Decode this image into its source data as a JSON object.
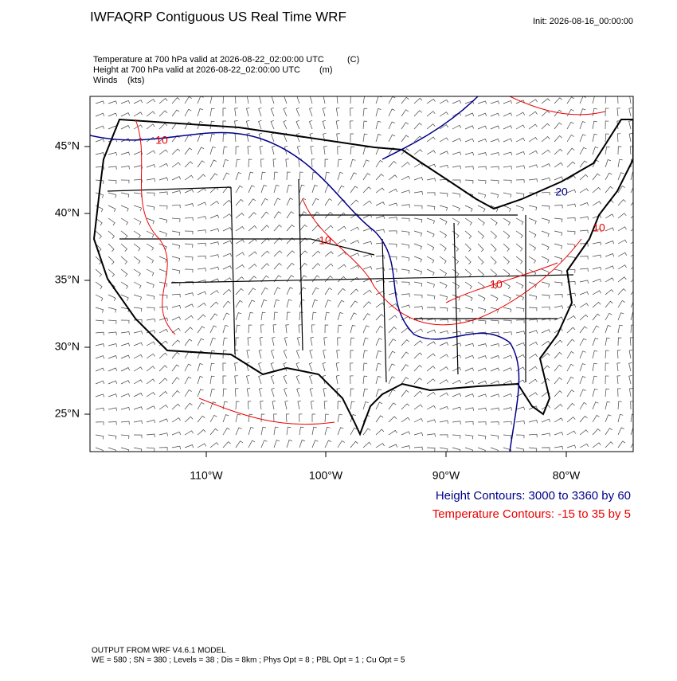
{
  "header": {
    "title": "IWFAQRP Contiguous US Real Time WRF",
    "init": "Init: 2026-08-16_00:00:00"
  },
  "fields": [
    {
      "text": "Temperature at 700 hPa valid at 2026-08-22_02:00:00 UTC",
      "units": "(C)"
    },
    {
      "text": "Height at 700 hPa valid at 2026-08-22_02:00:00 UTC",
      "units": "(m)"
    },
    {
      "text": "Winds",
      "units": "(kts)"
    }
  ],
  "map": {
    "lat_labels": [
      "45°N",
      "40°N",
      "35°N",
      "30°N",
      "25°N"
    ],
    "lon_labels": [
      "110°W",
      "100°W",
      "90°W",
      "80°W"
    ],
    "contour_labels": [
      "10",
      "10",
      "10",
      "20",
      "10"
    ]
  },
  "legend": {
    "height": "Height Contours: 3000 to 3360 by 60",
    "temperature": "Temperature Contours: -15 to 35 by 5"
  },
  "footer": {
    "model": "OUTPUT FROM WRF V4.6.1 MODEL",
    "settings": "WE = 580 ; SN = 380 ; Levels = 38 ; Dis = 8km ; Phys Opt = 8 ; PBL Opt = 1 ; Cu Opt = 5"
  }
}
